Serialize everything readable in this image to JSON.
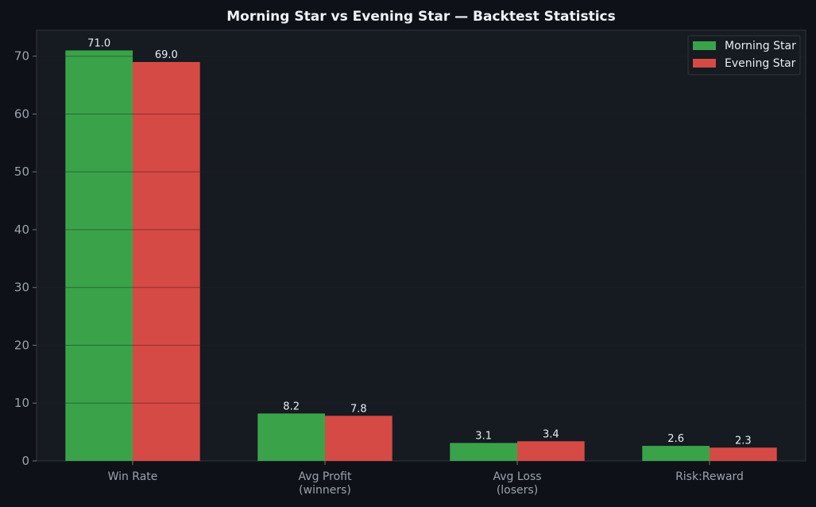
{
  "chart_data": {
    "type": "bar",
    "title": "Morning Star vs Evening Star — Backtest Statistics",
    "xlabel": "",
    "ylabel": "",
    "categories": [
      [
        "Win Rate"
      ],
      [
        "Avg Profit",
        "(winners)"
      ],
      [
        "Avg Loss",
        "(losers)"
      ],
      [
        "Risk:Reward"
      ]
    ],
    "series": [
      {
        "name": "Morning Star",
        "color": "#3aa34a",
        "values": [
          71.0,
          8.2,
          3.1,
          2.6
        ],
        "labels": [
          "71.0",
          "8.2",
          "3.1",
          "2.6"
        ]
      },
      {
        "name": "Evening Star",
        "color": "#d64a45",
        "values": [
          69.0,
          7.8,
          3.4,
          2.3
        ],
        "labels": [
          "69.0",
          "7.8",
          "3.4",
          "2.3"
        ]
      }
    ],
    "ylim": [
      0,
      74.5
    ],
    "yticks": [
      "0",
      "10",
      "20",
      "30",
      "40",
      "50",
      "60",
      "70"
    ],
    "grid": true,
    "legend_position": "top-right"
  },
  "colors": {
    "background": "#0e1118",
    "plot_background": "#161a21",
    "grid": "#2a2f37",
    "axis": "#30363d"
  }
}
